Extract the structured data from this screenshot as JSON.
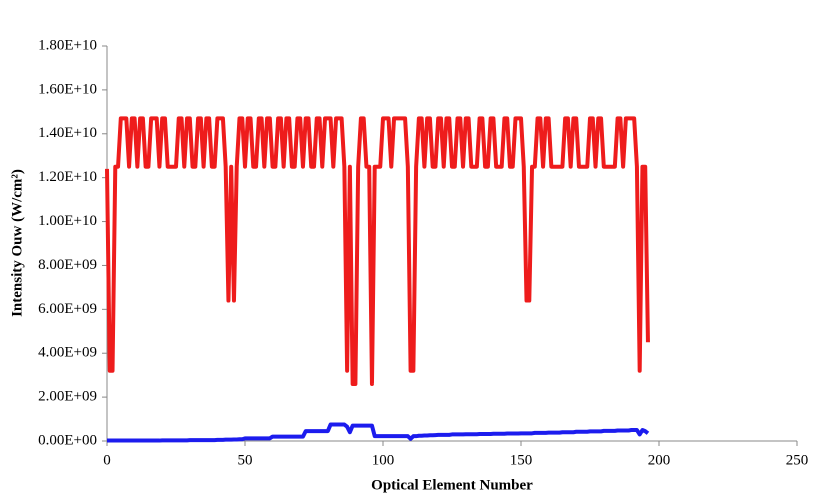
{
  "chart_data": {
    "type": "line",
    "x_label": "Optical Element Number",
    "y_label": "Intensity Ouw (W/cm²)",
    "xlim": [
      0,
      250
    ],
    "xticks": [
      0,
      50,
      100,
      150,
      200,
      250
    ],
    "ylim": [
      0,
      18000000000.0
    ],
    "yticks": [
      {
        "value": 0,
        "label": "0.00E+00"
      },
      {
        "value": 2000000000.0,
        "label": "2.00E+09"
      },
      {
        "value": 4000000000.0,
        "label": "4.00E+09"
      },
      {
        "value": 6000000000.0,
        "label": "6.00E+09"
      },
      {
        "value": 8000000000.0,
        "label": "8.00E+09"
      },
      {
        "value": 10000000000.0,
        "label": "1.00E+10"
      },
      {
        "value": 12000000000.0,
        "label": "1.20E+10"
      },
      {
        "value": 14000000000.0,
        "label": "1.40E+10"
      },
      {
        "value": 16000000000.0,
        "label": "1.60E+10"
      },
      {
        "value": 18000000000.0,
        "label": "1.80E+10"
      }
    ],
    "x": [
      0,
      1,
      2,
      3,
      4,
      5,
      6,
      7,
      8,
      9,
      10,
      11,
      12,
      13,
      14,
      15,
      16,
      17,
      18,
      19,
      20,
      21,
      22,
      23,
      24,
      25,
      26,
      27,
      28,
      29,
      30,
      31,
      32,
      33,
      34,
      35,
      36,
      37,
      38,
      39,
      40,
      41,
      42,
      43,
      44,
      45,
      46,
      47,
      48,
      49,
      50,
      51,
      52,
      53,
      54,
      55,
      56,
      57,
      58,
      59,
      60,
      61,
      62,
      63,
      64,
      65,
      66,
      67,
      68,
      69,
      70,
      71,
      72,
      73,
      74,
      75,
      76,
      77,
      78,
      79,
      80,
      81,
      82,
      83,
      84,
      85,
      86,
      87,
      88,
      89,
      90,
      91,
      92,
      93,
      94,
      95,
      96,
      97,
      98,
      99,
      100,
      101,
      102,
      103,
      104,
      105,
      106,
      107,
      108,
      109,
      110,
      111,
      112,
      113,
      114,
      115,
      116,
      117,
      118,
      119,
      120,
      121,
      122,
      123,
      124,
      125,
      126,
      127,
      128,
      129,
      130,
      131,
      132,
      133,
      134,
      135,
      136,
      137,
      138,
      139,
      140,
      141,
      142,
      143,
      144,
      145,
      146,
      147,
      148,
      149,
      150,
      151,
      152,
      153,
      154,
      155,
      156,
      157,
      158,
      159,
      160,
      161,
      162,
      163,
      164,
      165,
      166,
      167,
      168,
      169,
      170,
      171,
      172,
      173,
      174,
      175,
      176,
      177,
      178,
      179,
      180,
      181,
      182,
      183,
      184,
      185,
      186,
      187,
      188,
      189,
      190,
      191,
      192,
      193,
      194,
      195,
      196
    ],
    "series": [
      {
        "color": "#ee1c1c",
        "values": [
          12400000000.0,
          3200000000.0,
          3200000000.0,
          12500000000.0,
          12500000000.0,
          14700000000.0,
          14700000000.0,
          14700000000.0,
          12500000000.0,
          14700000000.0,
          14700000000.0,
          12500000000.0,
          14700000000.0,
          14700000000.0,
          12500000000.0,
          12500000000.0,
          14700000000.0,
          14700000000.0,
          14700000000.0,
          12500000000.0,
          14700000000.0,
          14700000000.0,
          12500000000.0,
          12500000000.0,
          12500000000.0,
          12500000000.0,
          14700000000.0,
          14700000000.0,
          12500000000.0,
          14700000000.0,
          14700000000.0,
          12500000000.0,
          12500000000.0,
          14700000000.0,
          14700000000.0,
          12500000000.0,
          14700000000.0,
          14700000000.0,
          12500000000.0,
          12500000000.0,
          14700000000.0,
          14700000000.0,
          14700000000.0,
          12500000000.0,
          6400000000.0,
          12500000000.0,
          6400000000.0,
          12500000000.0,
          14700000000.0,
          14700000000.0,
          12500000000.0,
          14700000000.0,
          14700000000.0,
          12500000000.0,
          12500000000.0,
          14700000000.0,
          14700000000.0,
          12500000000.0,
          14700000000.0,
          14700000000.0,
          12500000000.0,
          12500000000.0,
          14700000000.0,
          14700000000.0,
          12500000000.0,
          14700000000.0,
          14700000000.0,
          12500000000.0,
          12500000000.0,
          14700000000.0,
          14700000000.0,
          12500000000.0,
          14700000000.0,
          14700000000.0,
          12500000000.0,
          12500000000.0,
          14700000000.0,
          14700000000.0,
          12500000000.0,
          14700000000.0,
          14700000000.0,
          14700000000.0,
          12500000000.0,
          14700000000.0,
          14700000000.0,
          14700000000.0,
          12500000000.0,
          3200000000.0,
          12500000000.0,
          2600000000.0,
          2600000000.0,
          12500000000.0,
          14700000000.0,
          14700000000.0,
          12500000000.0,
          12500000000.0,
          2600000000.0,
          12500000000.0,
          12500000000.0,
          12500000000.0,
          14700000000.0,
          14700000000.0,
          14700000000.0,
          12500000000.0,
          14700000000.0,
          14700000000.0,
          14700000000.0,
          14700000000.0,
          14700000000.0,
          12500000000.0,
          3200000000.0,
          3200000000.0,
          12500000000.0,
          14700000000.0,
          14700000000.0,
          12500000000.0,
          14700000000.0,
          14700000000.0,
          12500000000.0,
          12500000000.0,
          14700000000.0,
          14700000000.0,
          12500000000.0,
          14700000000.0,
          14700000000.0,
          12500000000.0,
          12500000000.0,
          14700000000.0,
          14700000000.0,
          12500000000.0,
          14700000000.0,
          14700000000.0,
          12500000000.0,
          12500000000.0,
          12500000000.0,
          14700000000.0,
          14700000000.0,
          12500000000.0,
          12500000000.0,
          14700000000.0,
          14700000000.0,
          12500000000.0,
          12500000000.0,
          12500000000.0,
          14700000000.0,
          14700000000.0,
          12500000000.0,
          12500000000.0,
          14700000000.0,
          14700000000.0,
          14700000000.0,
          12500000000.0,
          6400000000.0,
          6400000000.0,
          12500000000.0,
          12500000000.0,
          14700000000.0,
          14700000000.0,
          12500000000.0,
          14700000000.0,
          14700000000.0,
          12500000000.0,
          12500000000.0,
          12500000000.0,
          12500000000.0,
          12500000000.0,
          14700000000.0,
          14700000000.0,
          12500000000.0,
          14700000000.0,
          14700000000.0,
          12500000000.0,
          12500000000.0,
          12500000000.0,
          12500000000.0,
          14700000000.0,
          14700000000.0,
          12500000000.0,
          14700000000.0,
          14700000000.0,
          12500000000.0,
          12500000000.0,
          12500000000.0,
          12500000000.0,
          12500000000.0,
          14700000000.0,
          14700000000.0,
          12500000000.0,
          14700000000.0,
          14700000000.0,
          14700000000.0,
          14700000000.0,
          12500000000.0,
          3200000000.0,
          12500000000.0,
          12500000000.0,
          4500000000.0
        ]
      },
      {
        "color": "#1c1cee",
        "values": [
          20000000.0,
          20000000.0,
          20000000.0,
          20000000.0,
          20000000.0,
          20000000.0,
          20000000.0,
          20000000.0,
          20000000.0,
          20000000.0,
          20000000.0,
          20000000.0,
          20000000.0,
          20000000.0,
          20000000.0,
          20000000.0,
          20000000.0,
          20000000.0,
          20000000.0,
          20000000.0,
          30000000.0,
          30000000.0,
          30000000.0,
          30000000.0,
          30000000.0,
          30000000.0,
          30000000.0,
          30000000.0,
          30000000.0,
          30000000.0,
          40000000.0,
          40000000.0,
          40000000.0,
          40000000.0,
          40000000.0,
          40000000.0,
          40000000.0,
          40000000.0,
          40000000.0,
          40000000.0,
          50000000.0,
          50000000.0,
          50000000.0,
          60000000.0,
          60000000.0,
          60000000.0,
          70000000.0,
          70000000.0,
          80000000.0,
          80000000.0,
          120000000.0,
          120000000.0,
          120000000.0,
          120000000.0,
          120000000.0,
          120000000.0,
          120000000.0,
          120000000.0,
          120000000.0,
          120000000.0,
          200000000.0,
          200000000.0,
          200000000.0,
          200000000.0,
          200000000.0,
          200000000.0,
          200000000.0,
          200000000.0,
          200000000.0,
          200000000.0,
          200000000.0,
          200000000.0,
          450000000.0,
          450000000.0,
          450000000.0,
          450000000.0,
          450000000.0,
          450000000.0,
          450000000.0,
          450000000.0,
          450000000.0,
          750000000.0,
          750000000.0,
          750000000.0,
          750000000.0,
          750000000.0,
          750000000.0,
          650000000.0,
          400000000.0,
          700000000.0,
          700000000.0,
          700000000.0,
          700000000.0,
          700000000.0,
          700000000.0,
          700000000.0,
          700000000.0,
          220000000.0,
          220000000.0,
          220000000.0,
          220000000.0,
          220000000.0,
          220000000.0,
          220000000.0,
          220000000.0,
          220000000.0,
          220000000.0,
          220000000.0,
          220000000.0,
          220000000.0,
          100000000.0,
          220000000.0,
          220000000.0,
          240000000.0,
          240000000.0,
          250000000.0,
          250000000.0,
          260000000.0,
          260000000.0,
          270000000.0,
          280000000.0,
          280000000.0,
          280000000.0,
          280000000.0,
          280000000.0,
          300000000.0,
          300000000.0,
          300000000.0,
          300000000.0,
          300000000.0,
          310000000.0,
          310000000.0,
          310000000.0,
          310000000.0,
          310000000.0,
          320000000.0,
          320000000.0,
          320000000.0,
          320000000.0,
          320000000.0,
          330000000.0,
          330000000.0,
          330000000.0,
          330000000.0,
          330000000.0,
          340000000.0,
          340000000.0,
          340000000.0,
          340000000.0,
          340000000.0,
          350000000.0,
          350000000.0,
          350000000.0,
          350000000.0,
          350000000.0,
          370000000.0,
          370000000.0,
          370000000.0,
          370000000.0,
          370000000.0,
          380000000.0,
          380000000.0,
          380000000.0,
          380000000.0,
          380000000.0,
          400000000.0,
          400000000.0,
          400000000.0,
          400000000.0,
          400000000.0,
          420000000.0,
          420000000.0,
          420000000.0,
          420000000.0,
          420000000.0,
          440000000.0,
          440000000.0,
          440000000.0,
          440000000.0,
          440000000.0,
          460000000.0,
          460000000.0,
          460000000.0,
          460000000.0,
          460000000.0,
          480000000.0,
          480000000.0,
          480000000.0,
          480000000.0,
          480000000.0,
          500000000.0,
          500000000.0,
          500000000.0,
          300000000.0,
          500000000.0,
          450000000.0,
          350000000.0
        ]
      }
    ]
  }
}
